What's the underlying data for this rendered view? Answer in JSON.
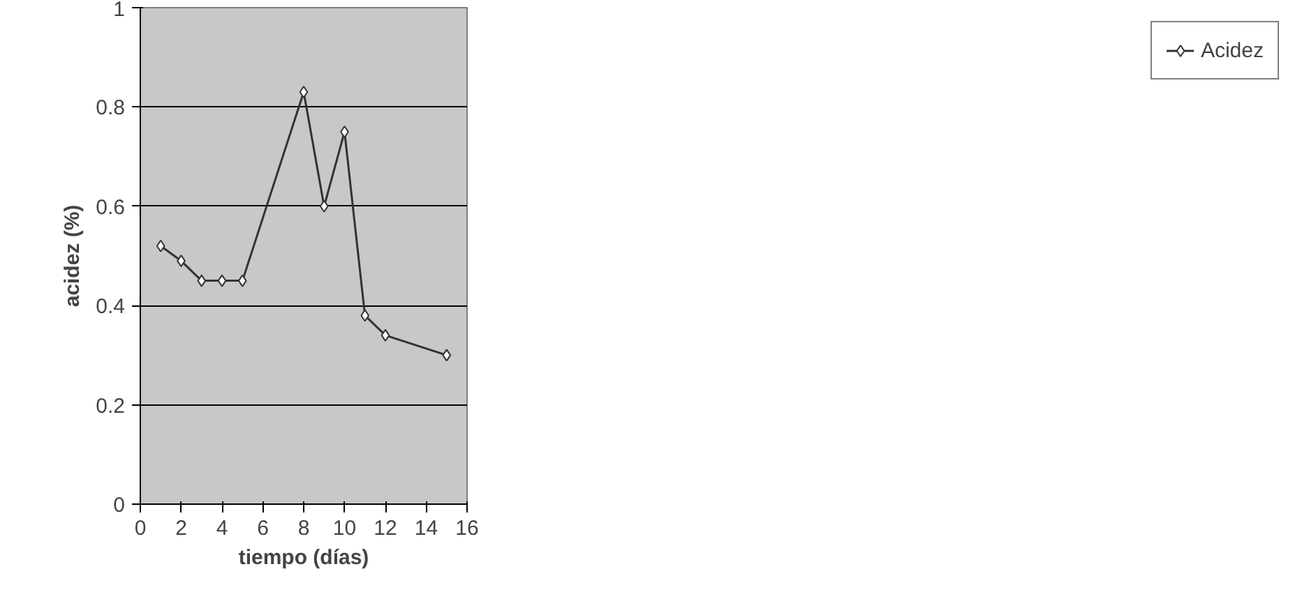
{
  "chart_data": {
    "type": "line",
    "xlabel": "tiempo (días)",
    "ylabel": "acidez (%)",
    "x": [
      1,
      2,
      3,
      4,
      5,
      8,
      9,
      10,
      11,
      12,
      15
    ],
    "series": [
      {
        "name": "Acidez",
        "color": "#333333",
        "values": [
          0.52,
          0.49,
          0.45,
          0.45,
          0.45,
          0.83,
          0.6,
          0.75,
          0.38,
          0.34,
          0.3
        ]
      }
    ],
    "xlim": [
      0,
      16
    ],
    "xticks": [
      0,
      2,
      4,
      6,
      8,
      10,
      12,
      14,
      16
    ],
    "ylim": [
      0,
      1
    ],
    "yticks": [
      0,
      {
        "value": 0.2,
        "label": "0.2"
      },
      {
        "value": 0.4,
        "label": "0.4"
      },
      {
        "value": 0.6,
        "label": "0.6"
      },
      {
        "value": 0.8,
        "label": "0.8"
      },
      1
    ],
    "grid": "y",
    "legend": "right",
    "marker": "diamond",
    "line_style": "solid"
  }
}
